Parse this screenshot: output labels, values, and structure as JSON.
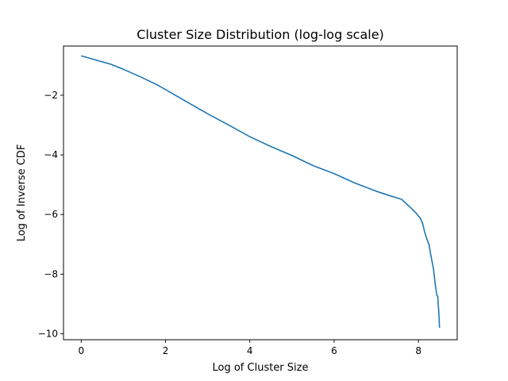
{
  "chart_data": {
    "type": "line",
    "title": "Cluster Size Distribution (log-log scale)",
    "xlabel": "Log of Cluster Size",
    "ylabel": "Log of Inverse CDF",
    "xlim": [
      -0.42,
      8.92
    ],
    "ylim": [
      -10.2,
      -0.35
    ],
    "xticks": [
      0,
      2,
      4,
      6,
      8
    ],
    "yticks": [
      -2,
      -4,
      -6,
      -8,
      -10
    ],
    "grid": false,
    "line_color": "#1f77b4",
    "series": [
      {
        "x": [
          0.0,
          0.3,
          0.7,
          1.0,
          1.4,
          1.8,
          2.0,
          2.5,
          3.0,
          3.5,
          4.0,
          4.5,
          5.0,
          5.5,
          6.0,
          6.5,
          7.0,
          7.3,
          7.6,
          7.8,
          7.95,
          8.05,
          8.1,
          8.15,
          8.2,
          8.25,
          8.28,
          8.32,
          8.36,
          8.38,
          8.4,
          8.42,
          8.44,
          8.46,
          8.47,
          8.48,
          8.49,
          8.5
        ],
        "y": [
          -0.68,
          -0.8,
          -0.96,
          -1.13,
          -1.38,
          -1.65,
          -1.81,
          -2.22,
          -2.62,
          -3.0,
          -3.39,
          -3.72,
          -4.02,
          -4.36,
          -4.63,
          -4.95,
          -5.22,
          -5.36,
          -5.49,
          -5.75,
          -5.96,
          -6.14,
          -6.3,
          -6.6,
          -6.82,
          -7.0,
          -7.25,
          -7.55,
          -7.85,
          -8.1,
          -8.35,
          -8.55,
          -8.72,
          -8.75,
          -9.05,
          -9.2,
          -9.45,
          -9.8
        ]
      }
    ]
  }
}
